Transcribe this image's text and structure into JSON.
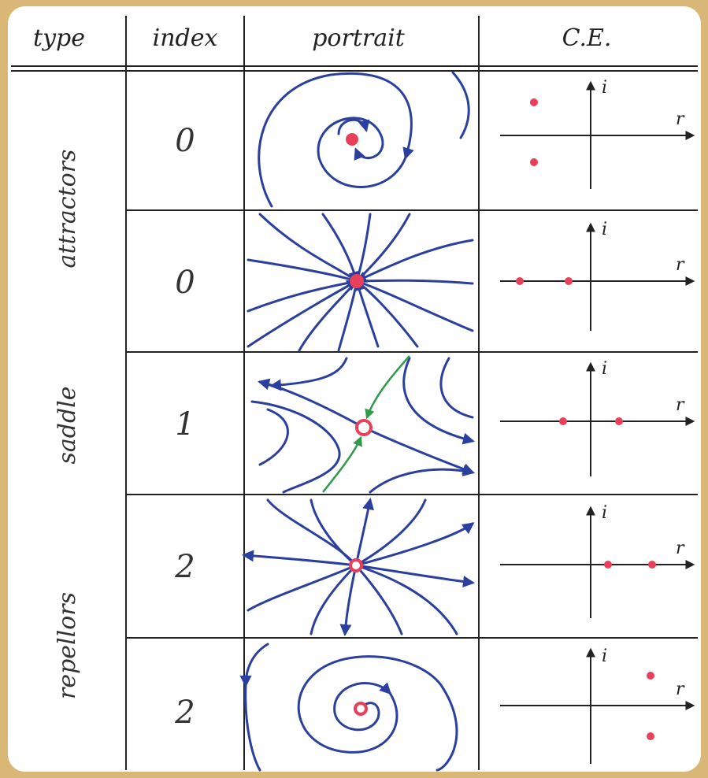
{
  "header": {
    "columns": [
      "type",
      "index",
      "portrait",
      "C.E."
    ]
  },
  "types": [
    "attractors",
    "saddle",
    "repellors"
  ],
  "rows": [
    {
      "index": "0",
      "ce_axes": [
        "i",
        "r"
      ]
    },
    {
      "index": "0",
      "ce_axes": [
        "i",
        "r"
      ]
    },
    {
      "index": "1",
      "ce_axes": [
        "i",
        "r"
      ]
    },
    {
      "index": "2",
      "ce_axes": [
        "i",
        "r"
      ]
    },
    {
      "index": "2",
      "ce_axes": [
        "i",
        "r"
      ]
    }
  ]
}
